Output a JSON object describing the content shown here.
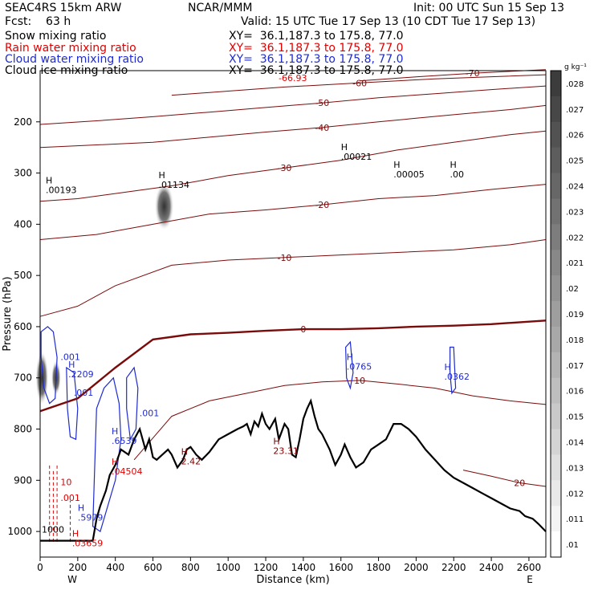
{
  "header": {
    "model": "SEAC4RS 15km ARW",
    "org": "NCAR/MMM",
    "init": "Init: 00 UTC Sun 15 Sep 13",
    "fcst": "Fcst:    63 h",
    "valid": "Valid: 15 UTC Tue 17 Sep 13 (10 CDT Tue 17 Sep 13)"
  },
  "fields": [
    {
      "label": "Snow mixing ratio",
      "xy": "XY=  36.1,187.3 to 175.8, 77.0",
      "color": "#000000"
    },
    {
      "label": "Rain water mixing ratio",
      "xy": "XY=  36.1,187.3 to 175.8, 77.0",
      "color": "#e00000"
    },
    {
      "label": "Cloud water mixing ratio",
      "xy": "XY=  36.1,187.3 to 175.8, 77.0",
      "color": "#1f2bd0"
    },
    {
      "label": "Cloud ice mixing ratio",
      "xy": "XY=  36.1,187.3 to 175.8, 77.0",
      "color": "#000000"
    }
  ],
  "chart_data": {
    "type": "cross-section",
    "xlabel": "Distance (km)",
    "ylabel": "Pressure (hPa)",
    "xlim": [
      0,
      2690
    ],
    "ylim": [
      1050,
      100
    ],
    "x_ticks": [
      0,
      200,
      400,
      600,
      800,
      1000,
      1200,
      1400,
      1600,
      1800,
      2000,
      2200,
      2400,
      2600
    ],
    "y_ticks": [
      200,
      300,
      400,
      500,
      600,
      700,
      800,
      900,
      1000
    ],
    "x_end_labels": {
      "left": "W",
      "right": "E"
    },
    "colorbar": {
      "unit": "g kg⁻¹",
      "labels": [
        ".028",
        ".027",
        ".026",
        ".025",
        ".024",
        ".023",
        ".022",
        ".021",
        ".02",
        ".019",
        ".018",
        ".017",
        ".016",
        ".015",
        ".014",
        ".013",
        ".012",
        ".011",
        ".01"
      ]
    },
    "temperature_contours": [
      {
        "value": -70,
        "points": [
          [
            1700,
            120
          ],
          [
            2000,
            112
          ],
          [
            2300,
            105
          ],
          [
            2690,
            98
          ]
        ]
      },
      {
        "value": -60,
        "points": [
          [
            700,
            148
          ],
          [
            1000,
            140
          ],
          [
            1300,
            132
          ],
          [
            1700,
            124
          ],
          [
            2100,
            116
          ],
          [
            2690,
            108
          ]
        ]
      },
      {
        "value": -50,
        "points": [
          [
            0,
            205
          ],
          [
            300,
            198
          ],
          [
            600,
            190
          ],
          [
            900,
            181
          ],
          [
            1200,
            172
          ],
          [
            1500,
            163
          ],
          [
            1800,
            153
          ],
          [
            2100,
            145
          ],
          [
            2400,
            137
          ],
          [
            2690,
            130
          ]
        ]
      },
      {
        "value": -40,
        "points": [
          [
            0,
            250
          ],
          [
            300,
            245
          ],
          [
            600,
            240
          ],
          [
            900,
            230
          ],
          [
            1200,
            220
          ],
          [
            1500,
            211
          ],
          [
            1800,
            200
          ],
          [
            2000,
            193
          ],
          [
            2200,
            186
          ],
          [
            2500,
            176
          ],
          [
            2690,
            168
          ]
        ]
      },
      {
        "value": -30,
        "points": [
          [
            0,
            355
          ],
          [
            200,
            350
          ],
          [
            400,
            340
          ],
          [
            700,
            325
          ],
          [
            1000,
            305
          ],
          [
            1300,
            290
          ],
          [
            1600,
            275
          ],
          [
            1900,
            255
          ],
          [
            2200,
            240
          ],
          [
            2500,
            225
          ],
          [
            2690,
            218
          ]
        ]
      },
      {
        "value": -20,
        "points": [
          [
            0,
            430
          ],
          [
            300,
            420
          ],
          [
            600,
            400
          ],
          [
            900,
            380
          ],
          [
            1200,
            372
          ],
          [
            1500,
            362
          ],
          [
            1800,
            350
          ],
          [
            2100,
            344
          ],
          [
            2400,
            332
          ],
          [
            2690,
            322
          ]
        ]
      },
      {
        "value": -10,
        "points": [
          [
            0,
            580
          ],
          [
            200,
            560
          ],
          [
            400,
            520
          ],
          [
            700,
            480
          ],
          [
            1000,
            470
          ],
          [
            1300,
            465
          ],
          [
            1600,
            460
          ],
          [
            1900,
            455
          ],
          [
            2200,
            450
          ],
          [
            2500,
            440
          ],
          [
            2690,
            430
          ]
        ]
      },
      {
        "value": 0,
        "points": [
          [
            0,
            765
          ],
          [
            200,
            740
          ],
          [
            400,
            680
          ],
          [
            600,
            625
          ],
          [
            800,
            615
          ],
          [
            1000,
            612
          ],
          [
            1200,
            608
          ],
          [
            1400,
            605
          ],
          [
            1600,
            605
          ],
          [
            1800,
            603
          ],
          [
            2000,
            600
          ],
          [
            2200,
            598
          ],
          [
            2400,
            595
          ],
          [
            2690,
            588
          ]
        ],
        "bold": true
      },
      {
        "value": 10,
        "points": [
          [
            500,
            860
          ],
          [
            700,
            775
          ],
          [
            900,
            745
          ],
          [
            1100,
            730
          ],
          [
            1300,
            715
          ],
          [
            1500,
            708
          ],
          [
            1700,
            705
          ],
          [
            1900,
            712
          ],
          [
            2100,
            720
          ],
          [
            2300,
            735
          ],
          [
            2500,
            745
          ],
          [
            2690,
            752
          ]
        ]
      },
      {
        "value": 20,
        "points": [
          [
            2250,
            880
          ],
          [
            2400,
            892
          ],
          [
            2550,
            905
          ],
          [
            2690,
            912
          ]
        ]
      }
    ],
    "terrain": [
      [
        0,
        1018
      ],
      [
        280,
        1018
      ],
      [
        300,
        975
      ],
      [
        320,
        950
      ],
      [
        350,
        920
      ],
      [
        370,
        890
      ],
      [
        400,
        870
      ],
      [
        430,
        840
      ],
      [
        470,
        850
      ],
      [
        500,
        820
      ],
      [
        530,
        800
      ],
      [
        560,
        840
      ],
      [
        580,
        820
      ],
      [
        600,
        855
      ],
      [
        620,
        860
      ],
      [
        650,
        850
      ],
      [
        680,
        840
      ],
      [
        700,
        850
      ],
      [
        730,
        875
      ],
      [
        760,
        860
      ],
      [
        780,
        840
      ],
      [
        800,
        835
      ],
      [
        830,
        850
      ],
      [
        860,
        860
      ],
      [
        900,
        845
      ],
      [
        950,
        820
      ],
      [
        1000,
        810
      ],
      [
        1050,
        800
      ],
      [
        1080,
        795
      ],
      [
        1100,
        790
      ],
      [
        1120,
        810
      ],
      [
        1140,
        785
      ],
      [
        1160,
        795
      ],
      [
        1180,
        770
      ],
      [
        1200,
        790
      ],
      [
        1220,
        800
      ],
      [
        1250,
        780
      ],
      [
        1270,
        820
      ],
      [
        1300,
        790
      ],
      [
        1320,
        800
      ],
      [
        1340,
        850
      ],
      [
        1360,
        855
      ],
      [
        1380,
        820
      ],
      [
        1400,
        780
      ],
      [
        1420,
        760
      ],
      [
        1440,
        745
      ],
      [
        1460,
        775
      ],
      [
        1480,
        800
      ],
      [
        1500,
        810
      ],
      [
        1540,
        840
      ],
      [
        1570,
        870
      ],
      [
        1600,
        850
      ],
      [
        1620,
        830
      ],
      [
        1650,
        855
      ],
      [
        1680,
        875
      ],
      [
        1720,
        865
      ],
      [
        1760,
        840
      ],
      [
        1800,
        830
      ],
      [
        1840,
        820
      ],
      [
        1880,
        790
      ],
      [
        1920,
        790
      ],
      [
        1960,
        800
      ],
      [
        2000,
        815
      ],
      [
        2050,
        840
      ],
      [
        2100,
        860
      ],
      [
        2150,
        880
      ],
      [
        2200,
        895
      ],
      [
        2250,
        905
      ],
      [
        2300,
        915
      ],
      [
        2350,
        925
      ],
      [
        2400,
        935
      ],
      [
        2450,
        945
      ],
      [
        2500,
        955
      ],
      [
        2550,
        960
      ],
      [
        2580,
        970
      ],
      [
        2620,
        975
      ],
      [
        2650,
        985
      ],
      [
        2690,
        1000
      ]
    ],
    "maxima_labels": [
      {
        "x": 30,
        "p": 320,
        "text": "H",
        "sub": ".00193",
        "color": "#000000"
      },
      {
        "x": 630,
        "p": 310,
        "text": "H",
        "sub": ".01134",
        "color": "#000000"
      },
      {
        "x": 1600,
        "p": 255,
        "text": "H",
        "sub": ".00021",
        "color": "#000000"
      },
      {
        "x": 1880,
        "p": 290,
        "text": "H",
        "sub": ".00005",
        "color": "#000000"
      },
      {
        "x": 2180,
        "p": 290,
        "text": "H",
        "sub": ".00",
        "color": "#000000"
      },
      {
        "x": 1630,
        "p": 665,
        "text": "H",
        "sub": ".0765",
        "color": "#1f2bd0"
      },
      {
        "x": 2150,
        "p": 685,
        "text": "H",
        "sub": ".0362",
        "color": "#1f2bd0"
      },
      {
        "x": 150,
        "p": 680,
        "text": "H",
        "sub": ".2209",
        "color": "#1f2bd0"
      },
      {
        "x": 380,
        "p": 810,
        "text": "H",
        "sub": ".6539",
        "color": "#1f2bd0"
      },
      {
        "x": 200,
        "p": 960,
        "text": "H",
        "sub": ".5979",
        "color": "#1f2bd0"
      },
      {
        "x": 750,
        "p": 850,
        "text": "H",
        "sub": "2.42",
        "color": "#800000"
      },
      {
        "x": 1240,
        "p": 830,
        "text": "H",
        "sub": "23.31",
        "color": "#800000"
      },
      {
        "x": 170,
        "p": 1010,
        "text": "H",
        "sub": ".03659",
        "color": "#e00000"
      },
      {
        "x": 380,
        "p": 870,
        "text": "H",
        "sub": ".04504",
        "color": "#e00000"
      }
    ],
    "value_labels": [
      {
        "x": 100,
        "p": 665,
        "text": ".001",
        "color": "#1f2bd0"
      },
      {
        "x": 170,
        "p": 735,
        "text": ".001",
        "color": "#1f2bd0"
      },
      {
        "x": 520,
        "p": 775,
        "text": ".001",
        "color": "#1f2bd0"
      },
      {
        "x": 100,
        "p": 940,
        "text": ".001",
        "color": "#e00000"
      },
      {
        "x": 100,
        "p": 910,
        "text": "10",
        "color": "#e00000"
      },
      {
        "x": 0,
        "p": 1002,
        "text": "1000",
        "color": "#000000"
      },
      {
        "x": 1260,
        "p": 120,
        "text": "-66.93",
        "color": "#e00000"
      }
    ]
  }
}
